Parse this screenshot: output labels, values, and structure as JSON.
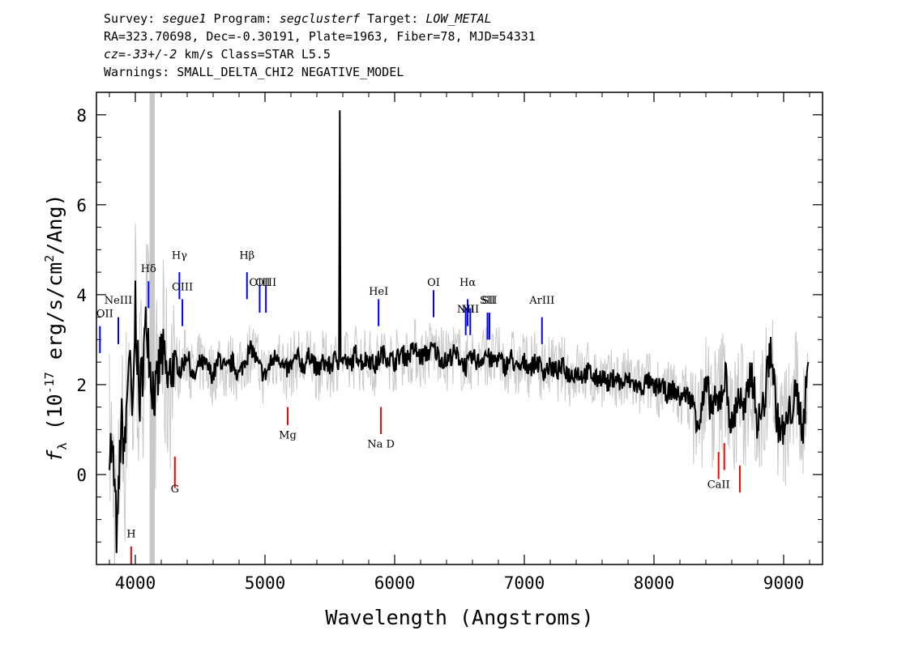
{
  "header": {
    "line1": {
      "survey_label": "Survey: ",
      "survey": "segue1",
      "program_label": " Program: ",
      "program": "segclusterf",
      "target_label": " Target: ",
      "target": "LOW_METAL"
    },
    "line2": "RA=323.70698, Dec=-0.30191, Plate=1963, Fiber=78, MJD=54331",
    "line3": {
      "cz": "cz=-33+/-2",
      "rest": " km/s Class=STAR L5.5"
    },
    "line4": "Warnings: SMALL_DELTA_CHI2 NEGATIVE_MODEL"
  },
  "chart_data": {
    "type": "line",
    "xlabel": "Wavelength (Angstroms)",
    "ylabel": "f_λ (10^-17 erg/s/cm^2/Ang)",
    "xlim": [
      3700,
      9300
    ],
    "ylim": [
      -2.0,
      8.5
    ],
    "x_ticks": [
      4000,
      5000,
      6000,
      7000,
      8000,
      9000
    ],
    "y_ticks": [
      0,
      2,
      4,
      6,
      8
    ],
    "grid": false,
    "masked_region": [
      4110,
      4150
    ],
    "series": [
      {
        "name": "flux",
        "color": "#000000",
        "x": [
          3800,
          3830,
          3860,
          3890,
          3920,
          3950,
          3980,
          4000,
          4030,
          4060,
          4090,
          4120,
          4160,
          4200,
          4250,
          4300,
          4350,
          4400,
          4450,
          4500,
          4550,
          4600,
          4650,
          4700,
          4750,
          4800,
          4850,
          4900,
          4950,
          5000,
          5050,
          5100,
          5150,
          5200,
          5250,
          5300,
          5350,
          5400,
          5450,
          5500,
          5550,
          5570,
          5577,
          5584,
          5600,
          5650,
          5700,
          5750,
          5800,
          5850,
          5900,
          5950,
          6000,
          6050,
          6100,
          6150,
          6200,
          6250,
          6300,
          6350,
          6400,
          6450,
          6500,
          6550,
          6600,
          6650,
          6700,
          6750,
          6800,
          6850,
          6900,
          6950,
          7000,
          7050,
          7100,
          7150,
          7200,
          7250,
          7300,
          7350,
          7400,
          7450,
          7500,
          7550,
          7600,
          7650,
          7700,
          7750,
          7800,
          7850,
          7900,
          7950,
          8000,
          8050,
          8100,
          8150,
          8200,
          8250,
          8300,
          8350,
          8400,
          8450,
          8500,
          8550,
          8600,
          8650,
          8700,
          8750,
          8800,
          8850,
          8900,
          8950,
          9000,
          9050,
          9100,
          9150,
          9190
        ],
        "y": [
          0.8,
          0.2,
          -1.5,
          1.2,
          0.5,
          2.8,
          1.0,
          3.9,
          1.5,
          2.6,
          3.5,
          2.2,
          1.7,
          2.8,
          2.0,
          2.6,
          2.3,
          2.7,
          2.1,
          2.5,
          2.4,
          2.2,
          2.6,
          2.3,
          2.5,
          2.2,
          2.6,
          2.8,
          2.4,
          2.2,
          2.5,
          2.7,
          2.3,
          2.4,
          2.6,
          2.4,
          2.7,
          2.3,
          2.5,
          2.4,
          2.6,
          2.5,
          8.1,
          2.5,
          2.6,
          2.4,
          2.7,
          2.5,
          2.6,
          2.4,
          2.7,
          2.6,
          2.5,
          2.7,
          2.6,
          2.8,
          2.6,
          2.7,
          2.8,
          2.6,
          2.5,
          2.7,
          2.6,
          2.4,
          2.6,
          2.5,
          2.7,
          2.5,
          2.6,
          2.4,
          2.6,
          2.3,
          2.5,
          2.4,
          2.5,
          2.3,
          2.4,
          2.3,
          2.4,
          2.2,
          2.3,
          2.2,
          2.3,
          2.1,
          2.2,
          2.0,
          2.2,
          2.0,
          2.1,
          2.0,
          1.9,
          2.1,
          1.9,
          2.0,
          1.8,
          1.9,
          1.7,
          1.8,
          1.6,
          1.2,
          1.9,
          1.5,
          1.6,
          2.2,
          1.0,
          1.8,
          1.3,
          2.4,
          1.1,
          1.6,
          2.9,
          1.2,
          0.9,
          1.4,
          1.8,
          1.0,
          2.5
        ]
      }
    ],
    "emission_lines": [
      {
        "label": "OII",
        "x": 3727
      },
      {
        "label": "NeIII",
        "x": 3869
      },
      {
        "label": "Hδ",
        "x": 4102
      },
      {
        "label": "Hγ",
        "x": 4340
      },
      {
        "label": "OIII",
        "x": 4363
      },
      {
        "label": "Hβ",
        "x": 4861
      },
      {
        "label": "OIII",
        "x": 4959
      },
      {
        "label": "OIII",
        "x": 5007
      },
      {
        "label": "HeI",
        "x": 5876
      },
      {
        "label": "OI",
        "x": 6300
      },
      {
        "label": "NII",
        "x": 6548
      },
      {
        "label": "Hα",
        "x": 6563
      },
      {
        "label": "NII",
        "x": 6583
      },
      {
        "label": "SII",
        "x": 6716
      },
      {
        "label": "SII",
        "x": 6731
      },
      {
        "label": "ArIII",
        "x": 7136
      }
    ],
    "absorption_lines": [
      {
        "label": "H",
        "x": 3968
      },
      {
        "label": "G",
        "x": 4305
      },
      {
        "label": "Mg",
        "x": 5175
      },
      {
        "label": "Na D",
        "x": 5894
      },
      {
        "label": "CaII",
        "x": 8498
      },
      {
        "label": "CaII",
        "x": 8542
      },
      {
        "label": "CaII",
        "x": 8662
      }
    ],
    "colors": {
      "flux": "#000000",
      "noise_band": "#c8c8c8",
      "mask": "#c8c8c8",
      "emission": "#0000ff",
      "absorption": "#ff0000",
      "axes": "#000000"
    }
  }
}
